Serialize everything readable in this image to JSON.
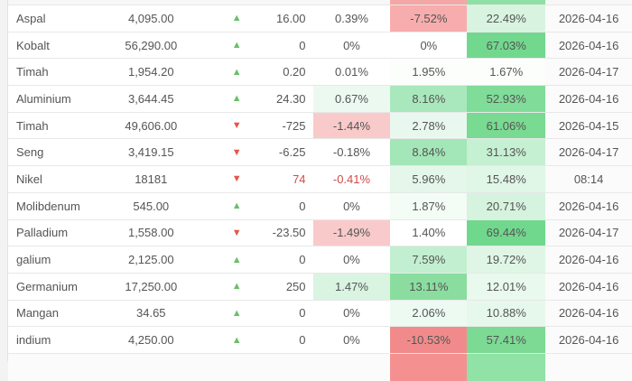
{
  "page": {
    "background": "#f3f3f3",
    "card_background": "#ffffff"
  },
  "icons": {
    "trend_up": "▲",
    "trend_down": "▼"
  },
  "colors": {
    "trend_up": "#6abf69",
    "trend_down": "#e2574c",
    "text": "#555555",
    "negative_text": "#d14b4b",
    "row_border": "#e8e8e8"
  },
  "table": {
    "top_partial": {
      "pct2_bg": "#f5a6a6",
      "pct3_bg": "#8ee0a4"
    },
    "bottom_partial": {
      "pct2_bg": "#f59090",
      "pct3_bg": "#90e2a6"
    },
    "rows": [
      {
        "name": "Aspal",
        "price": "4,095.00",
        "trend": "up",
        "change": "16.00",
        "pcts": [
          {
            "v": "0.39%"
          },
          {
            "v": "-7.52%",
            "bg": "#f7adad"
          },
          {
            "v": "22.49%",
            "bg": "#d8f4e0"
          }
        ],
        "date": "2026-04-16"
      },
      {
        "name": "Kobalt",
        "price": "56,290.00",
        "trend": "up",
        "change": "0",
        "pcts": [
          {
            "v": "0%"
          },
          {
            "v": "0%"
          },
          {
            "v": "67.03%",
            "bg": "#72d88e"
          }
        ],
        "date": "2026-04-16"
      },
      {
        "name": "Timah",
        "price": "1,954.20",
        "trend": "up",
        "change": "0.20",
        "pcts": [
          {
            "v": "0.01%"
          },
          {
            "v": "1.95%",
            "bg": "#fcfefc"
          },
          {
            "v": "1.67%",
            "bg": "#fcfefc"
          }
        ],
        "date": "2026-04-17"
      },
      {
        "name": "Aluminium",
        "price": "3,644.45",
        "trend": "up",
        "change": "24.30",
        "pcts": [
          {
            "v": "0.67%",
            "bg": "#ecf9f0"
          },
          {
            "v": "8.16%",
            "bg": "#a9e8bc"
          },
          {
            "v": "52.93%",
            "bg": "#80dc99"
          }
        ],
        "date": "2026-04-16"
      },
      {
        "name": "Timah",
        "price": "49,606.00",
        "trend": "down",
        "change": "-725",
        "pcts": [
          {
            "v": "-1.44%",
            "bg": "#f9caca"
          },
          {
            "v": "2.78%",
            "bg": "#e9f8ee"
          },
          {
            "v": "61.06%",
            "bg": "#79da92"
          }
        ],
        "date": "2026-04-15"
      },
      {
        "name": "Seng",
        "price": "3,419.15",
        "trend": "down",
        "change": "-6.25",
        "pcts": [
          {
            "v": "-0.18%"
          },
          {
            "v": "8.84%",
            "bg": "#a3e6b7"
          },
          {
            "v": "31.13%",
            "bg": "#c6f0d2"
          }
        ],
        "date": "2026-04-17"
      },
      {
        "name": "Nikel",
        "price": "18181",
        "trend": "down",
        "change": "74",
        "change_negative": true,
        "pcts": [
          {
            "v": "-0.41%",
            "fg": "#d14b4b"
          },
          {
            "v": "5.96%",
            "bg": "#e4f7ea"
          },
          {
            "v": "15.48%",
            "bg": "#e0f6e7"
          }
        ],
        "date": "08:14"
      },
      {
        "name": "Molibdenum",
        "price": "545.00",
        "trend": "up",
        "change": "0",
        "pcts": [
          {
            "v": "0%"
          },
          {
            "v": "1.87%",
            "bg": "#f4fcf6"
          },
          {
            "v": "20.71%",
            "bg": "#d5f3de"
          }
        ],
        "date": "2026-04-16"
      },
      {
        "name": "Palladium",
        "price": "1,558.00",
        "trend": "down",
        "change": "-23.50",
        "pcts": [
          {
            "v": "-1.49%",
            "bg": "#f9caca"
          },
          {
            "v": "1.40%"
          },
          {
            "v": "69.44%",
            "bg": "#70d88d"
          }
        ],
        "date": "2026-04-17"
      },
      {
        "name": "galium",
        "price": "2,125.00",
        "trend": "up",
        "change": "0",
        "pcts": [
          {
            "v": "0%"
          },
          {
            "v": "7.59%",
            "bg": "#c2efd0"
          },
          {
            "v": "19.72%",
            "bg": "#dff6e6"
          }
        ],
        "date": "2026-04-16"
      },
      {
        "name": "Germanium",
        "price": "17,250.00",
        "trend": "up",
        "change": "250",
        "pcts": [
          {
            "v": "1.47%",
            "bg": "#d9f4e1"
          },
          {
            "v": "13.11%",
            "bg": "#8add9f"
          },
          {
            "v": "12.01%",
            "bg": "#e9f9ee"
          }
        ],
        "date": "2026-04-16"
      },
      {
        "name": "Mangan",
        "price": "34.65",
        "trend": "up",
        "change": "0",
        "pcts": [
          {
            "v": "0%"
          },
          {
            "v": "2.06%",
            "bg": "#edfaf1"
          },
          {
            "v": "10.88%",
            "bg": "#e6f8ec"
          }
        ],
        "date": "2026-04-16"
      },
      {
        "name": "indium",
        "price": "4,250.00",
        "trend": "up",
        "change": "0",
        "pcts": [
          {
            "v": "0%"
          },
          {
            "v": "-10.53%",
            "bg": "#f18b8b"
          },
          {
            "v": "57.41%",
            "bg": "#7cda94"
          }
        ],
        "date": "2026-04-16"
      }
    ]
  }
}
